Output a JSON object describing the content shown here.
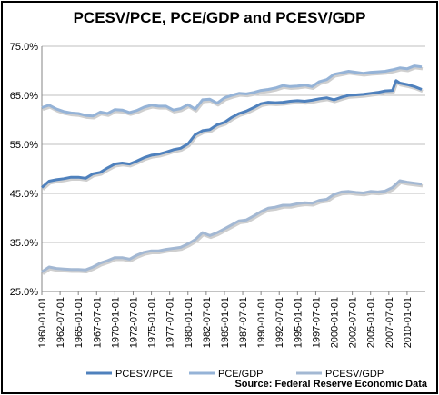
{
  "chart_data": {
    "type": "line",
    "title": "PCESV/PCE, PCE/GDP and PCESV/GDP",
    "xlabel": "",
    "ylabel": "",
    "ylim": [
      25,
      75
    ],
    "y_ticks": [
      "25.0%",
      "35.0%",
      "45.0%",
      "55.0%",
      "65.0%",
      "75.0%"
    ],
    "x_ticks": [
      "1960-01-01",
      "1962-07-01",
      "1965-01-01",
      "1967-07-01",
      "1970-01-01",
      "1972-07-01",
      "1975-01-01",
      "1977-07-01",
      "1980-01-01",
      "1982-07-01",
      "1985-01-01",
      "1987-07-01",
      "1990-01-01",
      "1992-07-01",
      "1995-01-01",
      "1997-07-01",
      "2000-01-01",
      "2002-07-01",
      "2005-01-01",
      "2007-07-01",
      "2010-01-01"
    ],
    "grid": true,
    "legend_position": "bottom",
    "source": "Source: Federal Reserve Economic Data",
    "series": [
      {
        "name": "PCESV/PCE",
        "color": "#4f81bd",
        "x": [
          1960,
          1961,
          1962,
          1963,
          1964,
          1965,
          1966,
          1967,
          1968,
          1969,
          1970,
          1971,
          1972,
          1973,
          1974,
          1975,
          1976,
          1977,
          1978,
          1979,
          1980,
          1981,
          1982,
          1983,
          1984,
          1985,
          1986,
          1987,
          1988,
          1989,
          1990,
          1991,
          1992,
          1993,
          1994,
          1995,
          1996,
          1997,
          1998,
          1999,
          2000,
          2001,
          2002,
          2003,
          2004,
          2005,
          2006,
          2007,
          2008,
          2008.5,
          2009,
          2010,
          2011,
          2012
        ],
        "values": [
          46.2,
          47.5,
          47.8,
          48.0,
          48.3,
          48.3,
          48.1,
          49.0,
          49.3,
          50.2,
          51.0,
          51.2,
          51.0,
          51.6,
          52.3,
          52.8,
          53.0,
          53.4,
          53.9,
          54.2,
          55.1,
          57.0,
          57.8,
          58.0,
          59.0,
          59.5,
          60.5,
          61.3,
          61.8,
          62.5,
          63.3,
          63.6,
          63.5,
          63.6,
          63.8,
          63.9,
          63.8,
          64.0,
          64.3,
          64.5,
          64.1,
          64.6,
          65.0,
          65.1,
          65.2,
          65.4,
          65.6,
          65.9,
          66.0,
          68.0,
          67.5,
          67.2,
          66.8,
          66.2
        ]
      },
      {
        "name": "PCE/GDP",
        "color": "#95b3d7",
        "x": [
          1960,
          1961,
          1962,
          1963,
          1964,
          1965,
          1966,
          1967,
          1968,
          1969,
          1970,
          1971,
          1972,
          1973,
          1974,
          1975,
          1976,
          1977,
          1978,
          1979,
          1980,
          1981,
          1982,
          1983,
          1984,
          1985,
          1986,
          1987,
          1988,
          1989,
          1990,
          1991,
          1992,
          1993,
          1994,
          1995,
          1996,
          1997,
          1998,
          1999,
          2000,
          2001,
          2002,
          2003,
          2004,
          2005,
          2006,
          2007,
          2008,
          2009,
          2010,
          2011,
          2012
        ],
        "values": [
          62.5,
          63.0,
          62.2,
          61.7,
          61.4,
          61.3,
          60.9,
          60.8,
          61.6,
          61.3,
          62.1,
          62.0,
          61.5,
          61.9,
          62.6,
          63.0,
          62.8,
          62.8,
          62.0,
          62.3,
          63.1,
          62.2,
          64.1,
          64.2,
          63.4,
          64.5,
          65.0,
          65.4,
          65.3,
          65.6,
          66.0,
          66.2,
          66.5,
          67.0,
          66.8,
          66.9,
          67.1,
          66.8,
          67.8,
          68.2,
          69.3,
          69.6,
          69.9,
          69.7,
          69.5,
          69.7,
          69.8,
          69.9,
          70.2,
          70.6,
          70.4,
          71.0,
          70.8
        ]
      },
      {
        "name": "PCESV/GDP",
        "color": "#a3b8d3",
        "x": [
          1960,
          1961,
          1962,
          1963,
          1964,
          1965,
          1966,
          1967,
          1968,
          1969,
          1970,
          1971,
          1972,
          1973,
          1974,
          1975,
          1976,
          1977,
          1978,
          1979,
          1980,
          1981,
          1982,
          1983,
          1984,
          1985,
          1986,
          1987,
          1988,
          1989,
          1990,
          1991,
          1992,
          1993,
          1994,
          1995,
          1996,
          1997,
          1998,
          1999,
          2000,
          2001,
          2002,
          2003,
          2004,
          2005,
          2006,
          2007,
          2008,
          2009,
          2010,
          2011,
          2012
        ],
        "values": [
          29.0,
          30.0,
          29.7,
          29.6,
          29.5,
          29.5,
          29.4,
          30.0,
          30.8,
          31.3,
          31.9,
          31.9,
          31.6,
          32.4,
          33.0,
          33.3,
          33.3,
          33.6,
          33.8,
          34.0,
          34.7,
          35.6,
          37.0,
          36.4,
          37.0,
          37.8,
          38.6,
          39.4,
          39.6,
          40.4,
          41.3,
          42.0,
          42.2,
          42.6,
          42.6,
          42.9,
          43.1,
          43.0,
          43.6,
          43.8,
          44.8,
          45.3,
          45.4,
          45.2,
          45.1,
          45.4,
          45.3,
          45.5,
          46.2,
          47.6,
          47.3,
          47.1,
          46.9
        ]
      }
    ]
  }
}
